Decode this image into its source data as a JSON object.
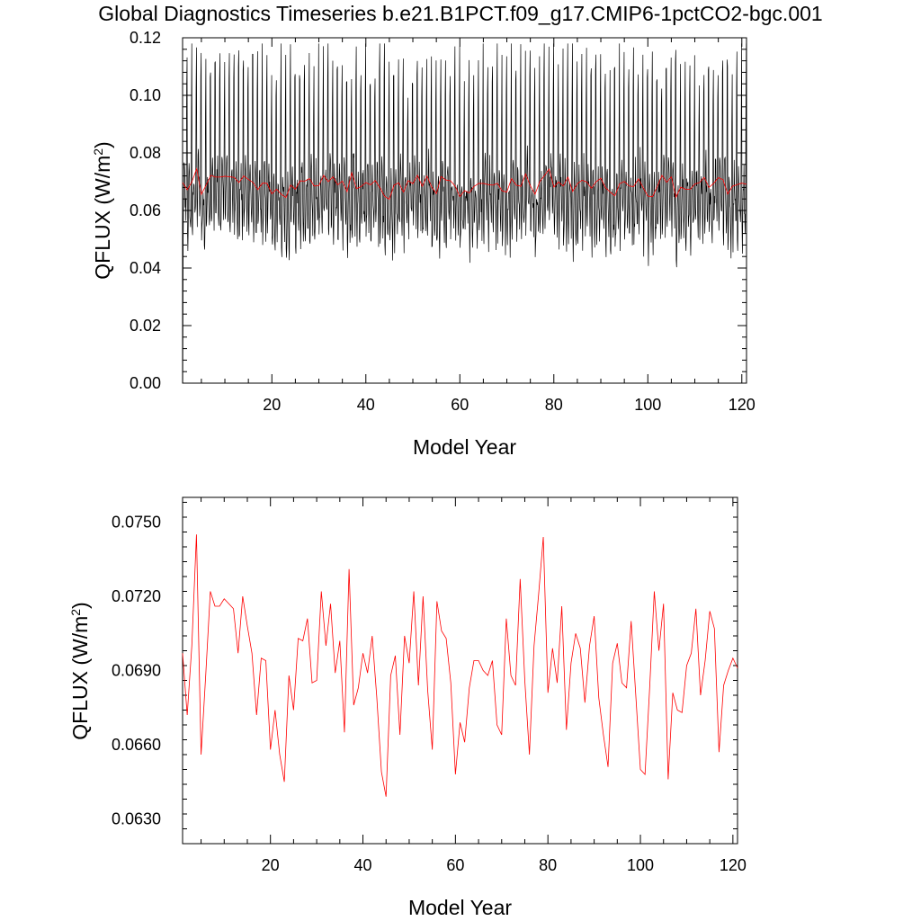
{
  "title": "Global Diagnostics Timeseries b.e21.B1PCT.f09_g17.CMIP6-1pctCO2-bgc.001",
  "colors": {
    "monthly": "#000000",
    "annual": "#ff0000"
  },
  "chart_data": [
    {
      "type": "line",
      "xlabel": "Model Year",
      "ylabel": "QFLUX (W/m^2)",
      "ylabel_main": "QFLUX (W/m",
      "ylabel_sup": "2",
      "ylabel_close": ")",
      "xlim": [
        1,
        121
      ],
      "ylim": [
        0.0,
        0.12
      ],
      "xticks": [
        "20",
        "40",
        "60",
        "80",
        "100",
        "120"
      ],
      "yticks": [
        "0.00",
        "0.02",
        "0.04",
        "0.06",
        "0.08",
        "0.10",
        "0.12"
      ],
      "grid": false,
      "series": [
        {
          "role": "monthly",
          "monthly_seasonal_cycle": [
            0.058,
            0.056,
            0.063,
            0.069,
            0.072,
            0.07,
            0.066,
            0.061,
            0.057,
            0.064,
            0.092,
            0.1
          ],
          "first_point": 0.0,
          "peak_min": 0.09,
          "peak_max": 0.118,
          "trough_min": 0.041,
          "trough_max": 0.06,
          "y_min_seen": 0.0,
          "y_max_seen": 0.118
        },
        {
          "role": "annual-mean",
          "same_as": "lower-panel"
        }
      ]
    },
    {
      "type": "line",
      "xlabel": "Model Year",
      "ylabel": "QFLUX (W/m^2)",
      "ylabel_main": "QFLUX (W/m",
      "ylabel_sup": "2",
      "ylabel_close": ")",
      "xlim": [
        1,
        121
      ],
      "ylim": [
        0.062,
        0.076
      ],
      "xticks": [
        "20",
        "40",
        "60",
        "80",
        "100",
        "120"
      ],
      "yticks": [
        "0.0630",
        "0.0660",
        "0.0690",
        "0.0720",
        "0.0750"
      ],
      "grid": false,
      "series": [
        {
          "role": "annual-mean",
          "x": [
            1,
            2,
            3,
            4,
            5,
            6,
            7,
            8,
            9,
            10,
            11,
            12,
            13,
            14,
            15,
            16,
            17,
            18,
            19,
            20,
            21,
            22,
            23,
            24,
            25,
            26,
            27,
            28,
            29,
            30,
            31,
            32,
            33,
            34,
            35,
            36,
            37,
            38,
            39,
            40,
            41,
            42,
            43,
            44,
            45,
            46,
            47,
            48,
            49,
            50,
            51,
            52,
            53,
            54,
            55,
            56,
            57,
            58,
            59,
            60,
            61,
            62,
            63,
            64,
            65,
            66,
            67,
            68,
            69,
            70,
            71,
            72,
            73,
            74,
            75,
            76,
            77,
            78,
            79,
            80,
            81,
            82,
            83,
            84,
            85,
            86,
            87,
            88,
            89,
            90,
            91,
            92,
            93,
            94,
            95,
            96,
            97,
            98,
            99,
            100,
            101,
            102,
            103,
            104,
            105,
            106,
            107,
            108,
            109,
            110,
            111,
            112,
            113,
            114,
            115,
            116,
            117,
            118,
            119,
            120,
            121
          ],
          "y": [
            0.0697,
            0.0672,
            0.07,
            0.0745,
            0.0656,
            0.0688,
            0.0722,
            0.0716,
            0.0716,
            0.0719,
            0.0717,
            0.0715,
            0.0697,
            0.072,
            0.0708,
            0.0697,
            0.0672,
            0.0695,
            0.0694,
            0.0658,
            0.0674,
            0.0656,
            0.0645,
            0.0688,
            0.0674,
            0.0703,
            0.0702,
            0.0711,
            0.0685,
            0.0686,
            0.0722,
            0.07,
            0.0717,
            0.0689,
            0.0702,
            0.0665,
            0.0731,
            0.0676,
            0.0683,
            0.0697,
            0.0689,
            0.0704,
            0.0679,
            0.0649,
            0.0639,
            0.0688,
            0.0696,
            0.0664,
            0.0704,
            0.0693,
            0.0722,
            0.0684,
            0.072,
            0.0682,
            0.0658,
            0.0718,
            0.0706,
            0.0703,
            0.0685,
            0.0648,
            0.0669,
            0.0661,
            0.0683,
            0.0694,
            0.0694,
            0.069,
            0.0688,
            0.0694,
            0.0668,
            0.0664,
            0.0711,
            0.0688,
            0.0684,
            0.0727,
            0.0686,
            0.0656,
            0.07,
            0.0721,
            0.0744,
            0.0681,
            0.0699,
            0.0685,
            0.0716,
            0.0666,
            0.0693,
            0.0705,
            0.0699,
            0.0677,
            0.07,
            0.0712,
            0.0679,
            0.0664,
            0.0651,
            0.0693,
            0.0701,
            0.0685,
            0.0683,
            0.071,
            0.068,
            0.065,
            0.0648,
            0.0683,
            0.0722,
            0.0698,
            0.0717,
            0.0646,
            0.0681,
            0.0674,
            0.0673,
            0.0692,
            0.0697,
            0.0715,
            0.068,
            0.0694,
            0.0714,
            0.0707,
            0.0657,
            0.0684,
            0.069,
            0.0695,
            0.0691
          ]
        }
      ]
    }
  ]
}
